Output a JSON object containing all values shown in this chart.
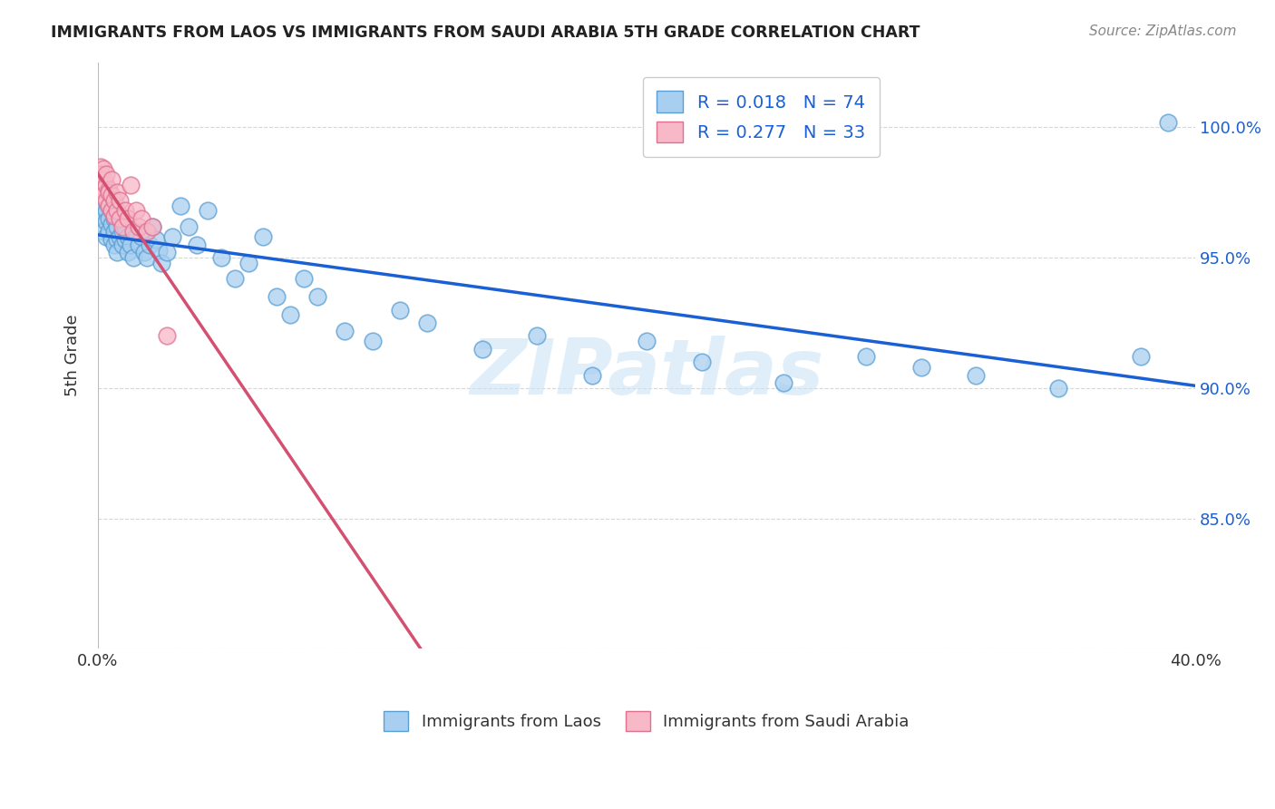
{
  "title": "IMMIGRANTS FROM LAOS VS IMMIGRANTS FROM SAUDI ARABIA 5TH GRADE CORRELATION CHART",
  "source": "Source: ZipAtlas.com",
  "ylabel": "5th Grade",
  "legend_label_blue": "Immigrants from Laos",
  "legend_label_pink": "Immigrants from Saudi Arabia",
  "R_blue": 0.018,
  "N_blue": 74,
  "R_pink": 0.277,
  "N_pink": 33,
  "color_blue": "#a8cff0",
  "color_blue_edge": "#5a9fd4",
  "color_blue_line": "#1a5fd4",
  "color_pink": "#f7b8c8",
  "color_pink_edge": "#e07090",
  "color_pink_line": "#d45070",
  "color_text_blue": "#1a5fd4",
  "color_grid": "#cccccc",
  "watermark": "ZIPatlas",
  "bg_color": "#ffffff",
  "blue_x": [
    0.001,
    0.001,
    0.001,
    0.002,
    0.002,
    0.002,
    0.002,
    0.003,
    0.003,
    0.003,
    0.003,
    0.003,
    0.004,
    0.004,
    0.004,
    0.005,
    0.005,
    0.005,
    0.006,
    0.006,
    0.006,
    0.007,
    0.007,
    0.007,
    0.008,
    0.008,
    0.009,
    0.009,
    0.01,
    0.01,
    0.011,
    0.011,
    0.012,
    0.013,
    0.014,
    0.015,
    0.016,
    0.017,
    0.018,
    0.019,
    0.02,
    0.021,
    0.022,
    0.023,
    0.025,
    0.027,
    0.03,
    0.033,
    0.036,
    0.04,
    0.045,
    0.05,
    0.055,
    0.06,
    0.065,
    0.07,
    0.075,
    0.08,
    0.09,
    0.1,
    0.11,
    0.12,
    0.14,
    0.16,
    0.18,
    0.2,
    0.22,
    0.25,
    0.28,
    0.3,
    0.32,
    0.35,
    0.38,
    0.39
  ],
  "blue_y": [
    0.972,
    0.968,
    0.965,
    0.975,
    0.97,
    0.966,
    0.96,
    0.975,
    0.972,
    0.968,
    0.964,
    0.958,
    0.97,
    0.965,
    0.96,
    0.968,
    0.963,
    0.957,
    0.965,
    0.96,
    0.955,
    0.962,
    0.957,
    0.952,
    0.958,
    0.965,
    0.96,
    0.955,
    0.962,
    0.957,
    0.958,
    0.952,
    0.955,
    0.95,
    0.96,
    0.955,
    0.958,
    0.952,
    0.95,
    0.955,
    0.962,
    0.957,
    0.953,
    0.948,
    0.952,
    0.958,
    0.97,
    0.962,
    0.955,
    0.968,
    0.95,
    0.942,
    0.948,
    0.958,
    0.935,
    0.928,
    0.942,
    0.935,
    0.922,
    0.918,
    0.93,
    0.925,
    0.915,
    0.92,
    0.905,
    0.918,
    0.91,
    0.902,
    0.912,
    0.908,
    0.905,
    0.9,
    0.912,
    1.002
  ],
  "pink_x": [
    0.001,
    0.001,
    0.001,
    0.002,
    0.002,
    0.002,
    0.002,
    0.003,
    0.003,
    0.003,
    0.004,
    0.004,
    0.004,
    0.005,
    0.005,
    0.005,
    0.006,
    0.006,
    0.007,
    0.007,
    0.008,
    0.008,
    0.009,
    0.01,
    0.011,
    0.012,
    0.013,
    0.014,
    0.015,
    0.016,
    0.018,
    0.02,
    0.025
  ],
  "pink_y": [
    0.985,
    0.982,
    0.978,
    0.98,
    0.976,
    0.984,
    0.974,
    0.978,
    0.972,
    0.982,
    0.976,
    0.97,
    0.975,
    0.974,
    0.98,
    0.968,
    0.972,
    0.966,
    0.968,
    0.975,
    0.965,
    0.972,
    0.962,
    0.968,
    0.965,
    0.978,
    0.96,
    0.968,
    0.962,
    0.965,
    0.96,
    0.962,
    0.92
  ]
}
